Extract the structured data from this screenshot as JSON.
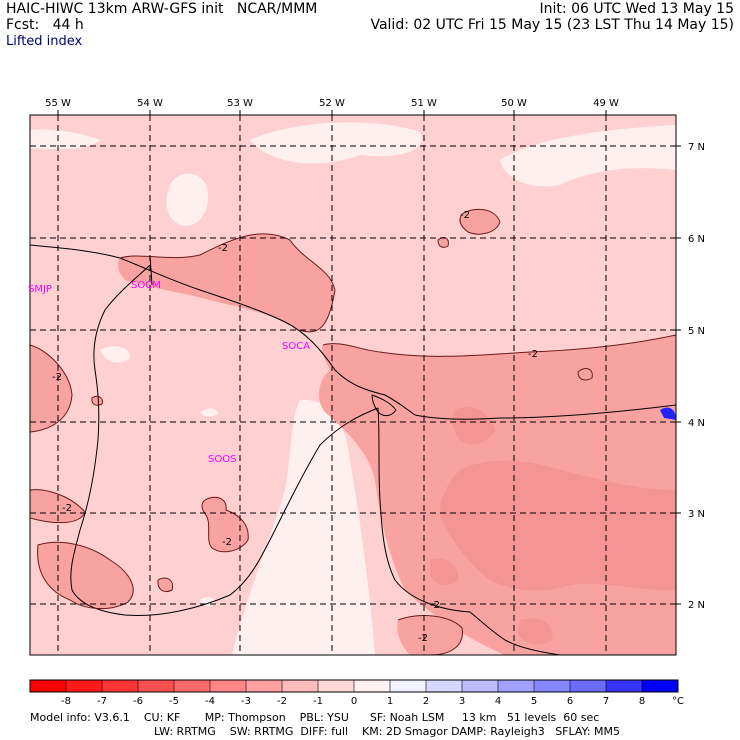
{
  "header": {
    "title": "HAIC-HIWC 13km ARW-GFS init   NCAR/MMM",
    "forecast": "Fcst:   44 h",
    "field": "Lifted index",
    "init": "Init: 06 UTC Wed 13 May 15",
    "valid": "Valid: 02 UTC Fri 15 May 15 (23 LST Thu 14 May 15)"
  },
  "map": {
    "longitude_labels": [
      "55 W",
      "54 W",
      "53 W",
      "52 W",
      "51 W",
      "50 W",
      "49 W"
    ],
    "latitude_labels": [
      "7 N",
      "6 N",
      "5 N",
      "4 N",
      "3 N",
      "2 N"
    ],
    "stations": [
      "SMJP",
      "SOCM",
      "SOCA",
      "SOOS"
    ],
    "contour_labels": [
      "-2",
      "-2",
      "-2",
      "-2",
      "-2",
      "-2",
      "-2",
      "-2"
    ]
  },
  "legend": {
    "tick_labels": [
      "-8",
      "-7",
      "-6",
      "-5",
      "-4",
      "-3",
      "-2",
      "-1",
      "0",
      "1",
      "2",
      "3",
      "4",
      "5",
      "6",
      "7",
      "8"
    ],
    "unit": "°C",
    "colors": [
      "#ff0000",
      "#ff1a1a",
      "#ff3535",
      "#ff5050",
      "#ff6b6b",
      "#ff8686",
      "#ffa1a1",
      "#ffbcbc",
      "#ffd7d7",
      "#fff2f2",
      "#f2f2ff",
      "#d7d7ff",
      "#bcbcff",
      "#a1a1ff",
      "#8686ff",
      "#6b6bff",
      "#3535ff",
      "#0000ff"
    ]
  },
  "footer": {
    "line1": "Model info: V3.6.1    CU: KF       MP: Thompson    PBL: YSU      SF: Noah LSM     13 km   51 levels  60 sec",
    "line2": "LW: RRTMG    SW: RRTMG  DIFF: full    KM: 2D Smagor DAMP: Rayleigh3   SFLAY: MM5"
  },
  "colors": {
    "lifted_index_minus1_0": "#ffd0d0",
    "lifted_index_minus2_minus1": "#ffb4b4",
    "lifted_index_minus3_minus2": "#f9a2a2",
    "lifted_index_0_1": "#fff0f0"
  }
}
